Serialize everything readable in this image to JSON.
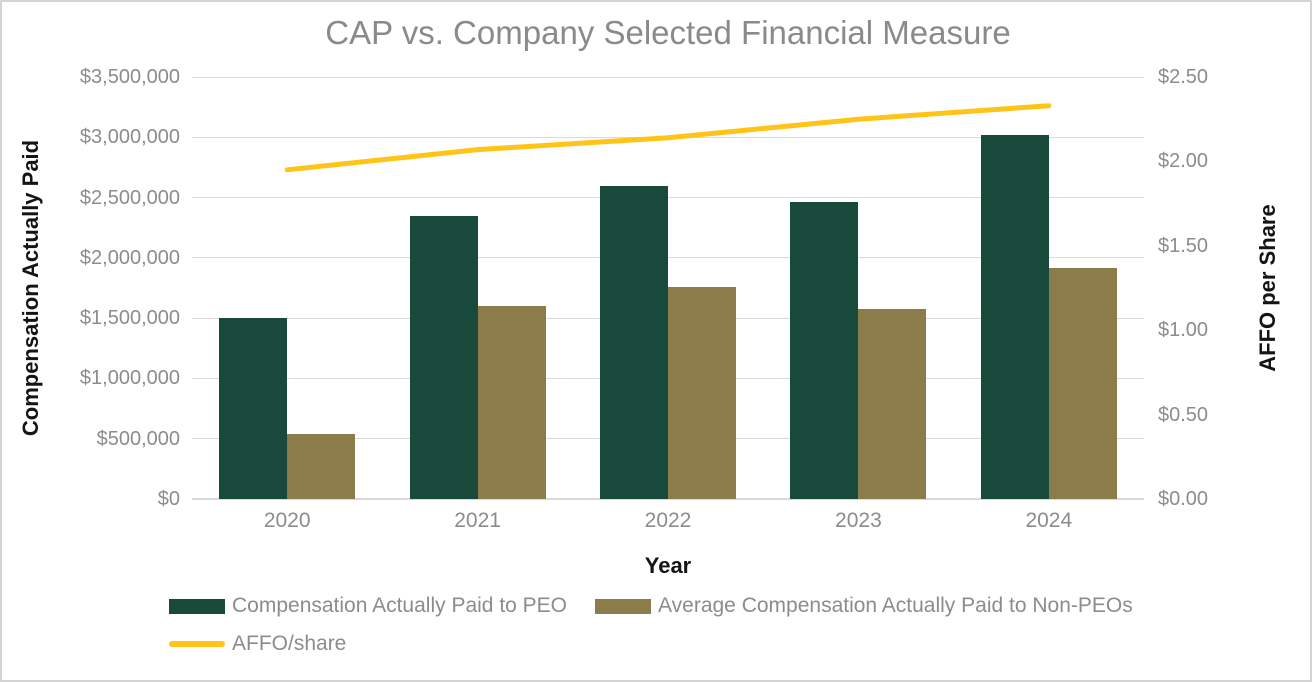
{
  "chart_data": {
    "type": "bar",
    "subtype": "grouped-bars-with-line-overlay",
    "title": "CAP vs. Company Selected Financial Measure",
    "categories": [
      "2020",
      "2021",
      "2022",
      "2023",
      "2024"
    ],
    "series": [
      {
        "name": "Compensation Actually Paid to PEO",
        "type": "bar",
        "axis": "left",
        "color": "#18493a",
        "values": [
          1500000,
          2350000,
          2600000,
          2460000,
          3020000
        ]
      },
      {
        "name": "Average Compensation Actually Paid to Non-PEOs",
        "type": "bar",
        "axis": "left",
        "color": "#8c7b4b",
        "values": [
          540000,
          1600000,
          1760000,
          1575000,
          1920000
        ]
      },
      {
        "name": "AFFO/share",
        "type": "line",
        "axis": "right",
        "color": "#ffc417",
        "values": [
          1.95,
          2.07,
          2.14,
          2.25,
          2.33
        ]
      }
    ],
    "xlabel": "Year",
    "left_axis": {
      "label": "Compensation Actually Paid",
      "min": 0,
      "max": 3500000,
      "step": 500000,
      "tick_labels": [
        "$0",
        "$500,000",
        "$1,000,000",
        "$1,500,000",
        "$2,000,000",
        "$2,500,000",
        "$3,000,000",
        "$3,500,000"
      ]
    },
    "right_axis": {
      "label": "AFFO per Share",
      "min": 0,
      "max": 2.5,
      "step": 0.5,
      "tick_labels": [
        "$0.00",
        "$0.50",
        "$1.00",
        "$1.50",
        "$2.00",
        "$2.50"
      ]
    },
    "grid": true,
    "legend_position": "bottom-left"
  },
  "colors": {
    "background": "#ffffff",
    "border": "#d6d4d2",
    "grid": "#dadada",
    "title_text": "#8a8a8a",
    "tick_text": "#8c8c8c",
    "axis_title_text": "#141414"
  }
}
